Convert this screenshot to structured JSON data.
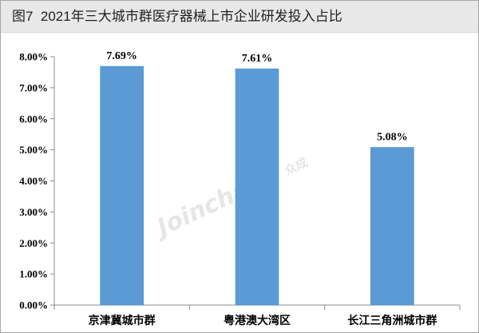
{
  "watermark": {
    "brand": "Joinchain",
    "brand_cn": "众成"
  },
  "colors": {
    "bar": "#5b9bd5",
    "bar_edge": "#4f8fc9",
    "axis": "#8c8c8c",
    "title_bg": "#e8e8e8"
  },
  "chart_data": {
    "type": "bar",
    "title": "图7  2021年三大城市群医疗器械上市企业研发投入占比",
    "xlabel": "",
    "ylabel": "",
    "categories": [
      "京津冀城市群",
      "粤港澳大湾区",
      "长江三角洲城市群"
    ],
    "values": [
      7.69,
      7.61,
      5.08
    ],
    "value_unit": "%",
    "data_labels": [
      "7.69%",
      "7.61%",
      "5.08%"
    ],
    "ylim": [
      0,
      8
    ],
    "yticks": [
      0,
      1,
      2,
      3,
      4,
      5,
      6,
      7,
      8
    ],
    "ytick_labels": [
      "0.00%",
      "1.00%",
      "2.00%",
      "3.00%",
      "4.00%",
      "5.00%",
      "6.00%",
      "7.00%",
      "8.00%"
    ],
    "grid": false,
    "legend": "none"
  }
}
